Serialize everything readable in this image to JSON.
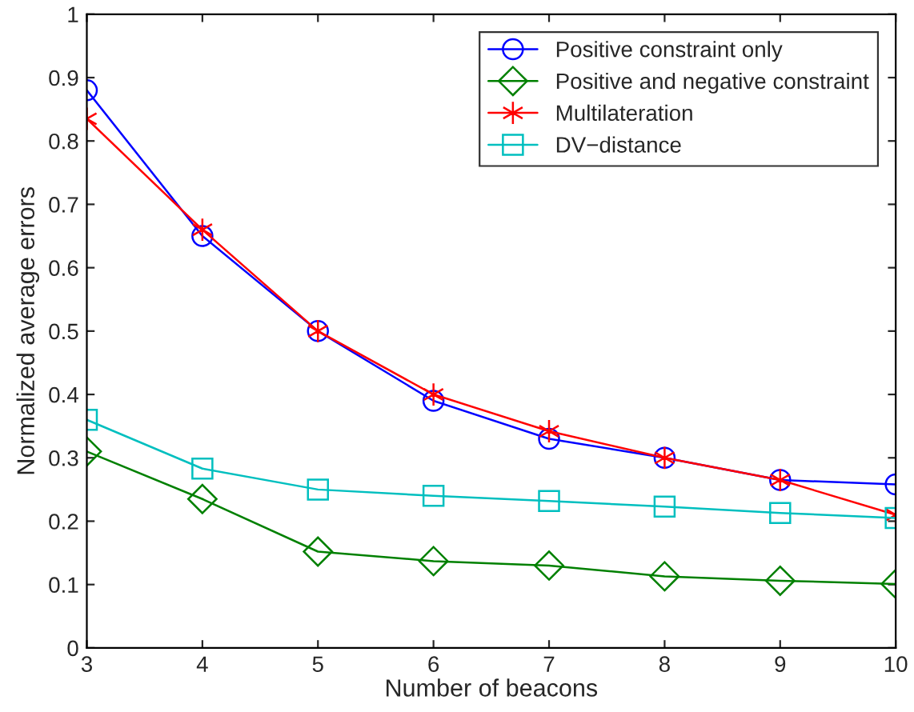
{
  "chart_data": {
    "type": "line",
    "xlabel": "Number of beacons",
    "ylabel": "Normalized average errors",
    "x": [
      3,
      4,
      5,
      6,
      7,
      8,
      9,
      10
    ],
    "series": [
      {
        "name": "Positive constraint only",
        "color": "#0000ff",
        "marker": "circle",
        "values": [
          0.88,
          0.65,
          0.5,
          0.39,
          0.33,
          0.3,
          0.265,
          0.258
        ]
      },
      {
        "name": "Positive and negative constraint",
        "color": "#008000",
        "marker": "diamond",
        "values": [
          0.31,
          0.235,
          0.152,
          0.137,
          0.13,
          0.113,
          0.106,
          0.101
        ]
      },
      {
        "name": "Multilateration",
        "color": "#ff0000",
        "marker": "cross",
        "values": [
          0.835,
          0.66,
          0.5,
          0.4,
          0.342,
          0.3,
          0.265,
          0.21
        ]
      },
      {
        "name": "DV−distance",
        "color": "#00bfbf",
        "marker": "square",
        "values": [
          0.36,
          0.283,
          0.25,
          0.24,
          0.232,
          0.223,
          0.213,
          0.205
        ]
      }
    ],
    "xlim": [
      3,
      10
    ],
    "xticks": [
      3,
      4,
      5,
      6,
      7,
      8,
      9,
      10
    ],
    "ylim": [
      0,
      1
    ],
    "yticks": [
      0,
      0.1,
      0.2,
      0.3,
      0.4,
      0.5,
      0.6,
      0.7,
      0.8,
      0.9,
      1
    ],
    "legend": "top right",
    "grid": false,
    "line_style": "solid"
  }
}
